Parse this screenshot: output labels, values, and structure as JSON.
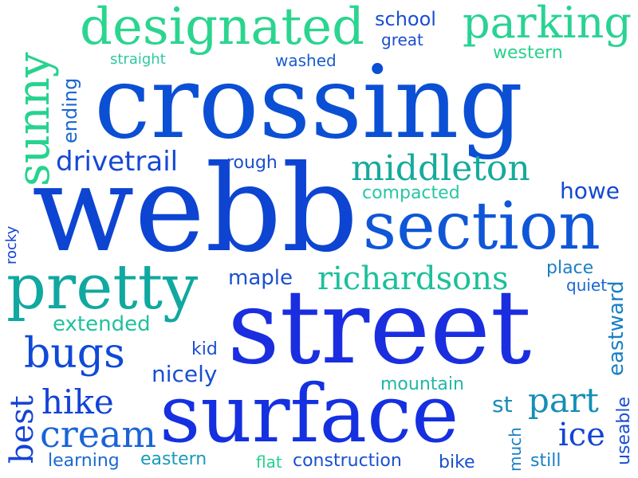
{
  "words": {
    "crossing": "crossing",
    "webb": "webb",
    "street": "street",
    "surface": "surface",
    "section": "section",
    "pretty": "pretty",
    "designated": "designated",
    "parking": "parking",
    "sunny": "sunny",
    "middleton": "middleton",
    "richardsons": "richardsons",
    "bugs": "bugs",
    "cream": "cream",
    "hike": "hike",
    "best": "best",
    "part": "part",
    "ice": "ice",
    "drivetrail": "drivetrail",
    "school": "school",
    "great": "great",
    "western": "western",
    "straight": "straight",
    "washed": "washed",
    "ending": "ending",
    "rough": "rough",
    "compacted": "compacted",
    "howe": "howe",
    "rocky": "rocky",
    "maple": "maple",
    "place": "place",
    "quiet": "quiet",
    "eastward": "eastward",
    "extended": "extended",
    "kid": "kid",
    "nicely": "nicely",
    "mountain": "mountain",
    "st": "st",
    "useable": "useable",
    "learning": "learning",
    "eastern": "eastern",
    "flat": "flat",
    "construction": "construction",
    "bike": "bike",
    "much": "much",
    "still": "still"
  },
  "colors": {
    "blue_dark": "#0a3fd0",
    "blue": "#1a5ee0",
    "royal": "#0f2ed8",
    "teal": "#12a9a4",
    "green": "#24d68d",
    "seafoam": "#2cc8a0"
  }
}
